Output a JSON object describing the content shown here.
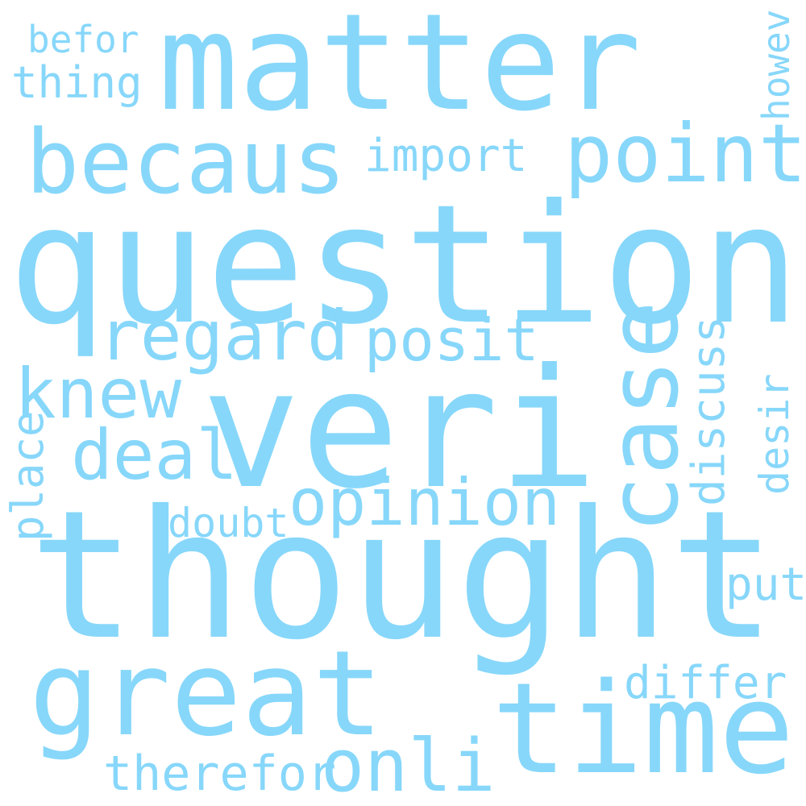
{
  "words": {
    "question": "question",
    "thought": "thought",
    "veri": "veri",
    "matter": "matter",
    "time": "time",
    "great": "great",
    "case": "case",
    "becaus": "becaus",
    "point": "point",
    "regard": "regard",
    "knew": "knew",
    "deal": "deal",
    "opinion": "opinion",
    "onli": "onli",
    "posit": "posit",
    "import": "import",
    "thing": "thing",
    "befor": "befor",
    "discuss": "discuss",
    "therefor": "therefor",
    "place": "place",
    "differ": "differ",
    "desir": "desir",
    "doubt": "doubt",
    "put": "put",
    "howev": "howev"
  },
  "colors": {
    "word": "#87d7fa",
    "background": "#ffffff"
  }
}
